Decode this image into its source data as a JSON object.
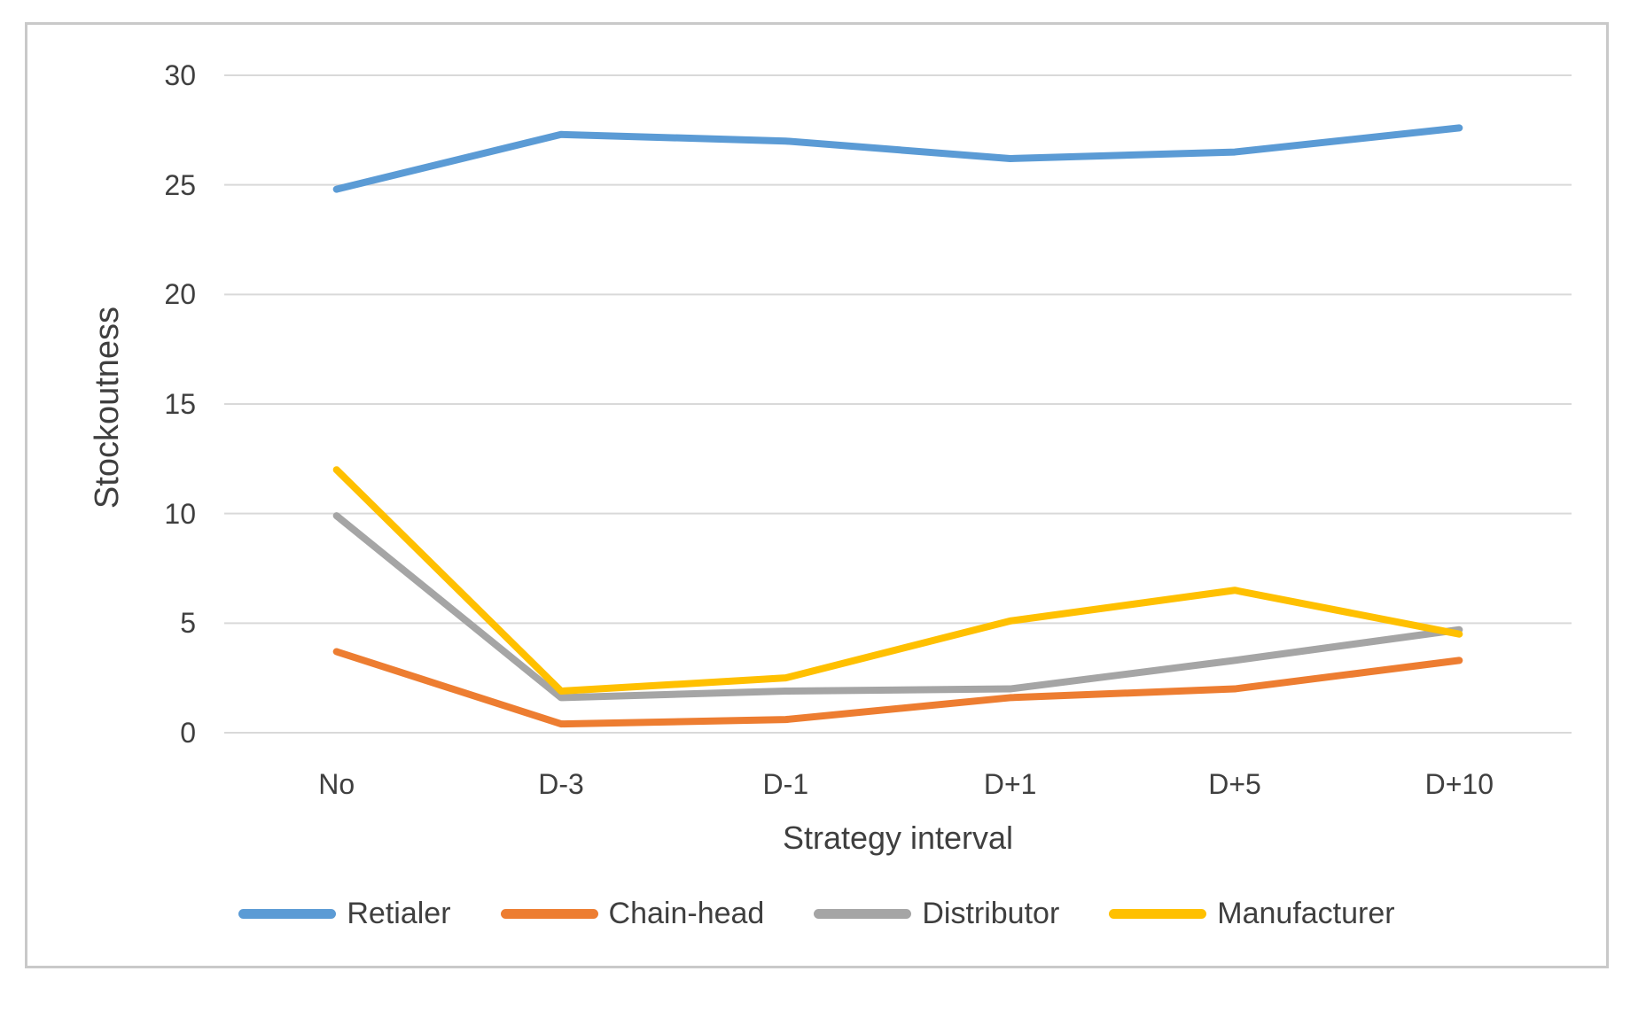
{
  "chart_data": {
    "type": "line",
    "categories": [
      "No",
      "D-3",
      "D-1",
      "D+1",
      "D+5",
      "D+10"
    ],
    "series": [
      {
        "name": "Retialer",
        "color": "#5B9BD5",
        "values": [
          24.8,
          27.3,
          27.0,
          26.2,
          26.5,
          27.6
        ]
      },
      {
        "name": "Chain-head",
        "color": "#ED7D31",
        "values": [
          3.7,
          0.4,
          0.6,
          1.6,
          2.0,
          3.3
        ]
      },
      {
        "name": "Distributor",
        "color": "#A5A5A5",
        "values": [
          9.9,
          1.6,
          1.9,
          2.0,
          3.3,
          4.7
        ]
      },
      {
        "name": "Manufacturer",
        "color": "#FFC000",
        "values": [
          12.0,
          1.9,
          2.5,
          5.1,
          6.5,
          4.5
        ]
      }
    ],
    "title": "",
    "xlabel": "Strategy interval",
    "ylabel": "Stockoutness",
    "ylim": [
      0,
      30
    ],
    "yticks": [
      0,
      5,
      10,
      15,
      20,
      25,
      30
    ],
    "grid": "horizontal",
    "legend_position": "bottom"
  },
  "styles": {
    "grid_color": "#D9D9D9",
    "axis_text_color": "#3F3F3F",
    "frame_border_color": "#C9C9C9",
    "background": "#FFFFFF",
    "line_width": 8
  }
}
